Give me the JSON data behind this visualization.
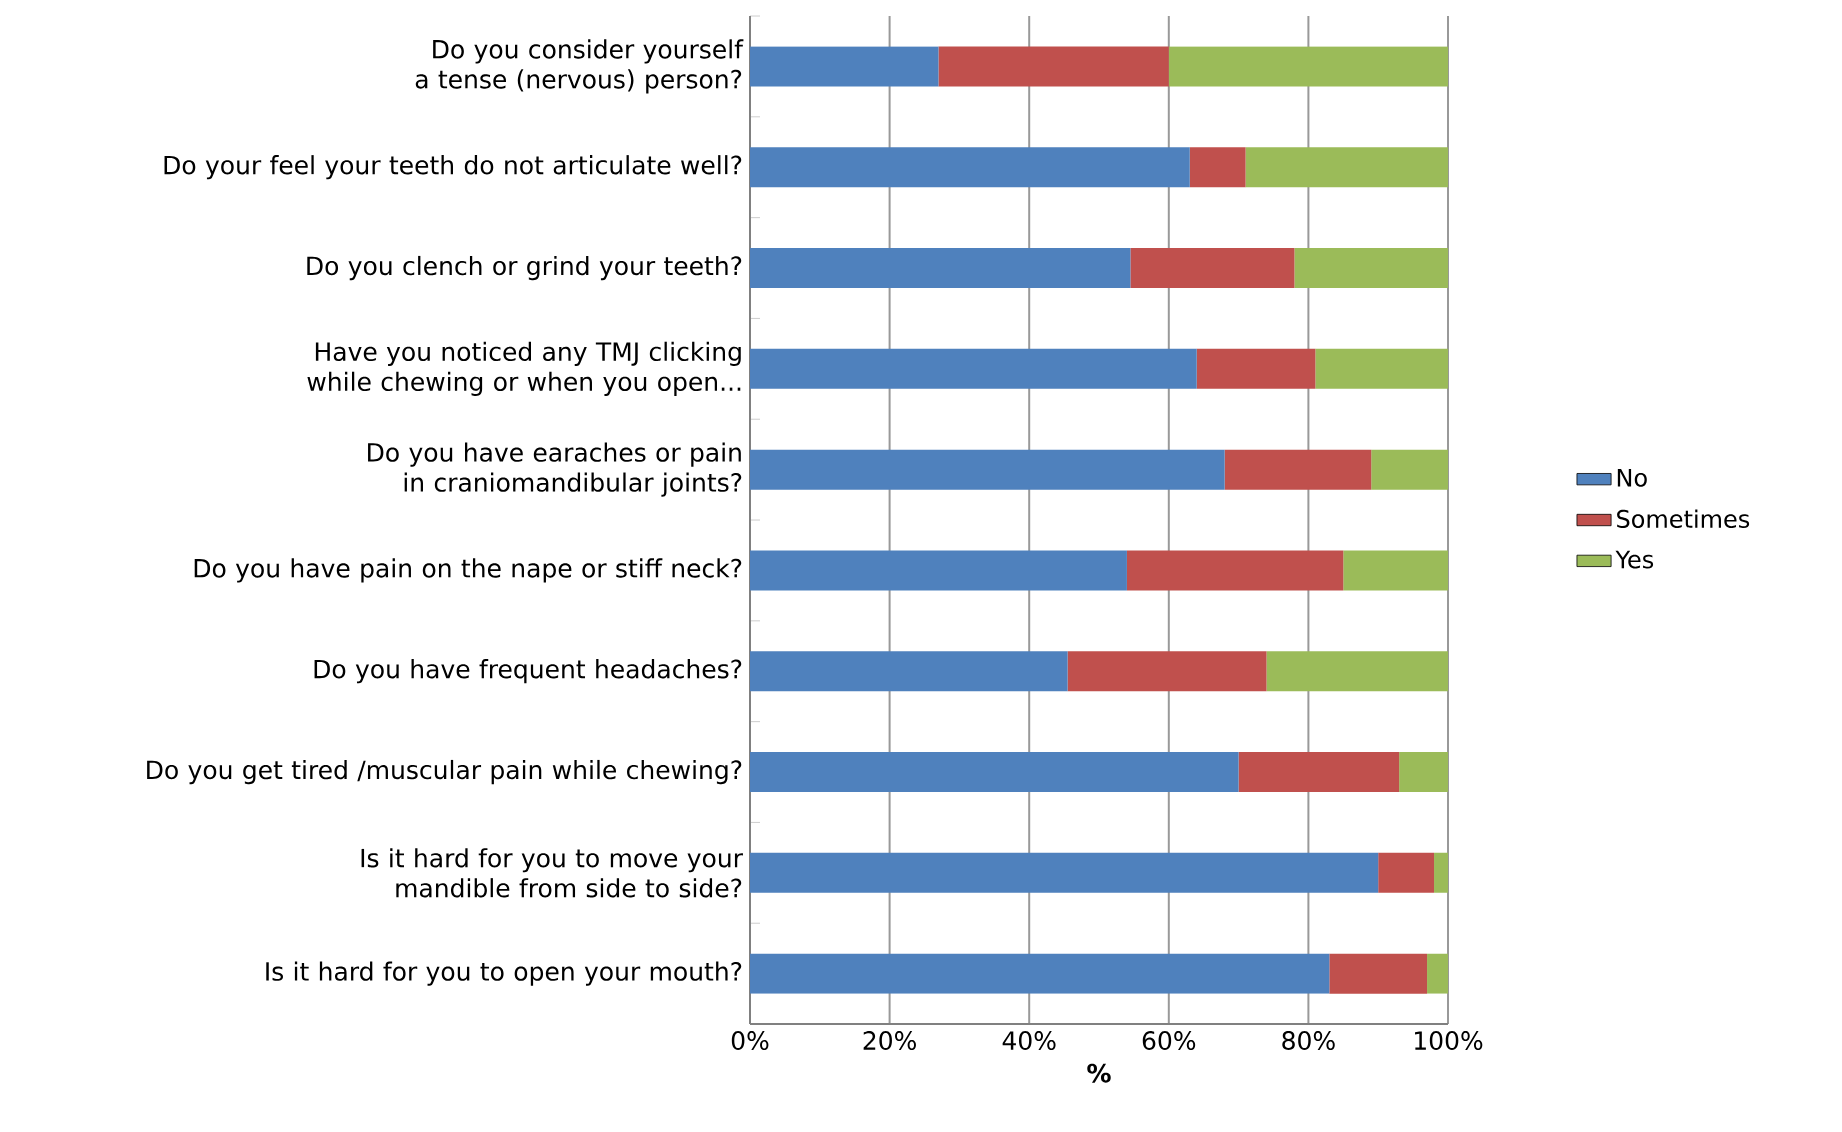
{
  "chart_data": {
    "type": "bar",
    "orientation": "horizontal",
    "stacked": true,
    "categories": [
      "Do you consider yourself a tense (nervous) person?",
      "Do your feel your teeth do not articulate well?",
      "Do you clench or grind your teeth?",
      "Have you noticed any TMJ clicking while chewing or when you open...",
      "Do you have earaches or pain in craniomandibular joints?",
      "Do you have pain on the nape or stiff neck?",
      "Do you have frequent headaches?",
      "Do you get tired /muscular pain while chewing?",
      "Is it hard for you to move your mandible from side to side?",
      "Is it hard for you to open your mouth?"
    ],
    "series": [
      {
        "name": "No",
        "color": "#4f81bd",
        "values": [
          27,
          63,
          54.5,
          64,
          68,
          54,
          45.5,
          70,
          90,
          83
        ]
      },
      {
        "name": "Sometimes",
        "color": "#c0504d",
        "values": [
          33,
          8,
          23.5,
          17,
          21,
          31,
          28.5,
          23,
          8,
          14
        ]
      },
      {
        "name": "Yes",
        "color": "#9bbb59",
        "values": [
          40,
          29,
          22,
          19,
          11,
          15,
          26,
          7,
          2,
          3
        ]
      }
    ],
    "xlim": [
      0,
      100
    ],
    "xticks": [
      {
        "value": 0,
        "label": "0%"
      },
      {
        "value": 20,
        "label": "20%"
      },
      {
        "value": 40,
        "label": "40%"
      },
      {
        "value": 60,
        "label": "60%"
      },
      {
        "value": 80,
        "label": "80%"
      },
      {
        "value": 100,
        "label": "100%"
      }
    ],
    "xlabel": "%",
    "grid": "x",
    "legend": "right"
  }
}
